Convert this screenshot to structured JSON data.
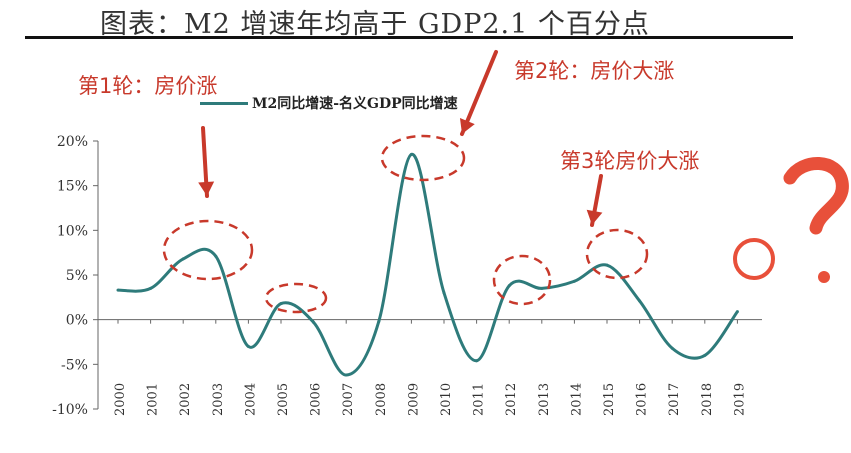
{
  "title": "图表：M2 增速年均高于 GDP2.1 个百分点",
  "legend": {
    "label": "M2同比增速-名义GDP同比增速"
  },
  "annotations": {
    "round1": "第1轮：房价涨",
    "round2": "第2轮：房价大涨",
    "round3": "第3轮房价大涨"
  },
  "colors": {
    "line": "#2E7B7B",
    "annotation": "#C8392B",
    "axis": "#666666"
  },
  "chart_data": {
    "type": "line",
    "x": [
      "2000",
      "2001",
      "2002",
      "2003",
      "2004",
      "2005",
      "2006",
      "2007",
      "2008",
      "2009",
      "2010",
      "2011",
      "2012",
      "2013",
      "2014",
      "2015",
      "2016",
      "2017",
      "2018",
      "2019"
    ],
    "series": [
      {
        "name": "M2同比增速-名义GDP同比增速",
        "values": [
          3.3,
          3.5,
          6.8,
          7.1,
          -3.0,
          1.8,
          -0.3,
          -6.2,
          -0.2,
          18.5,
          3.0,
          -4.6,
          3.8,
          3.5,
          4.3,
          6.1,
          2.1,
          -3.2,
          -4.0,
          0.9
        ]
      }
    ],
    "y_ticks": [
      "20%",
      "15%",
      "10%",
      "5%",
      "0%",
      "-5%",
      "-10%"
    ],
    "ylim": [
      -10,
      20
    ],
    "grid": false,
    "legend_position": "top"
  }
}
